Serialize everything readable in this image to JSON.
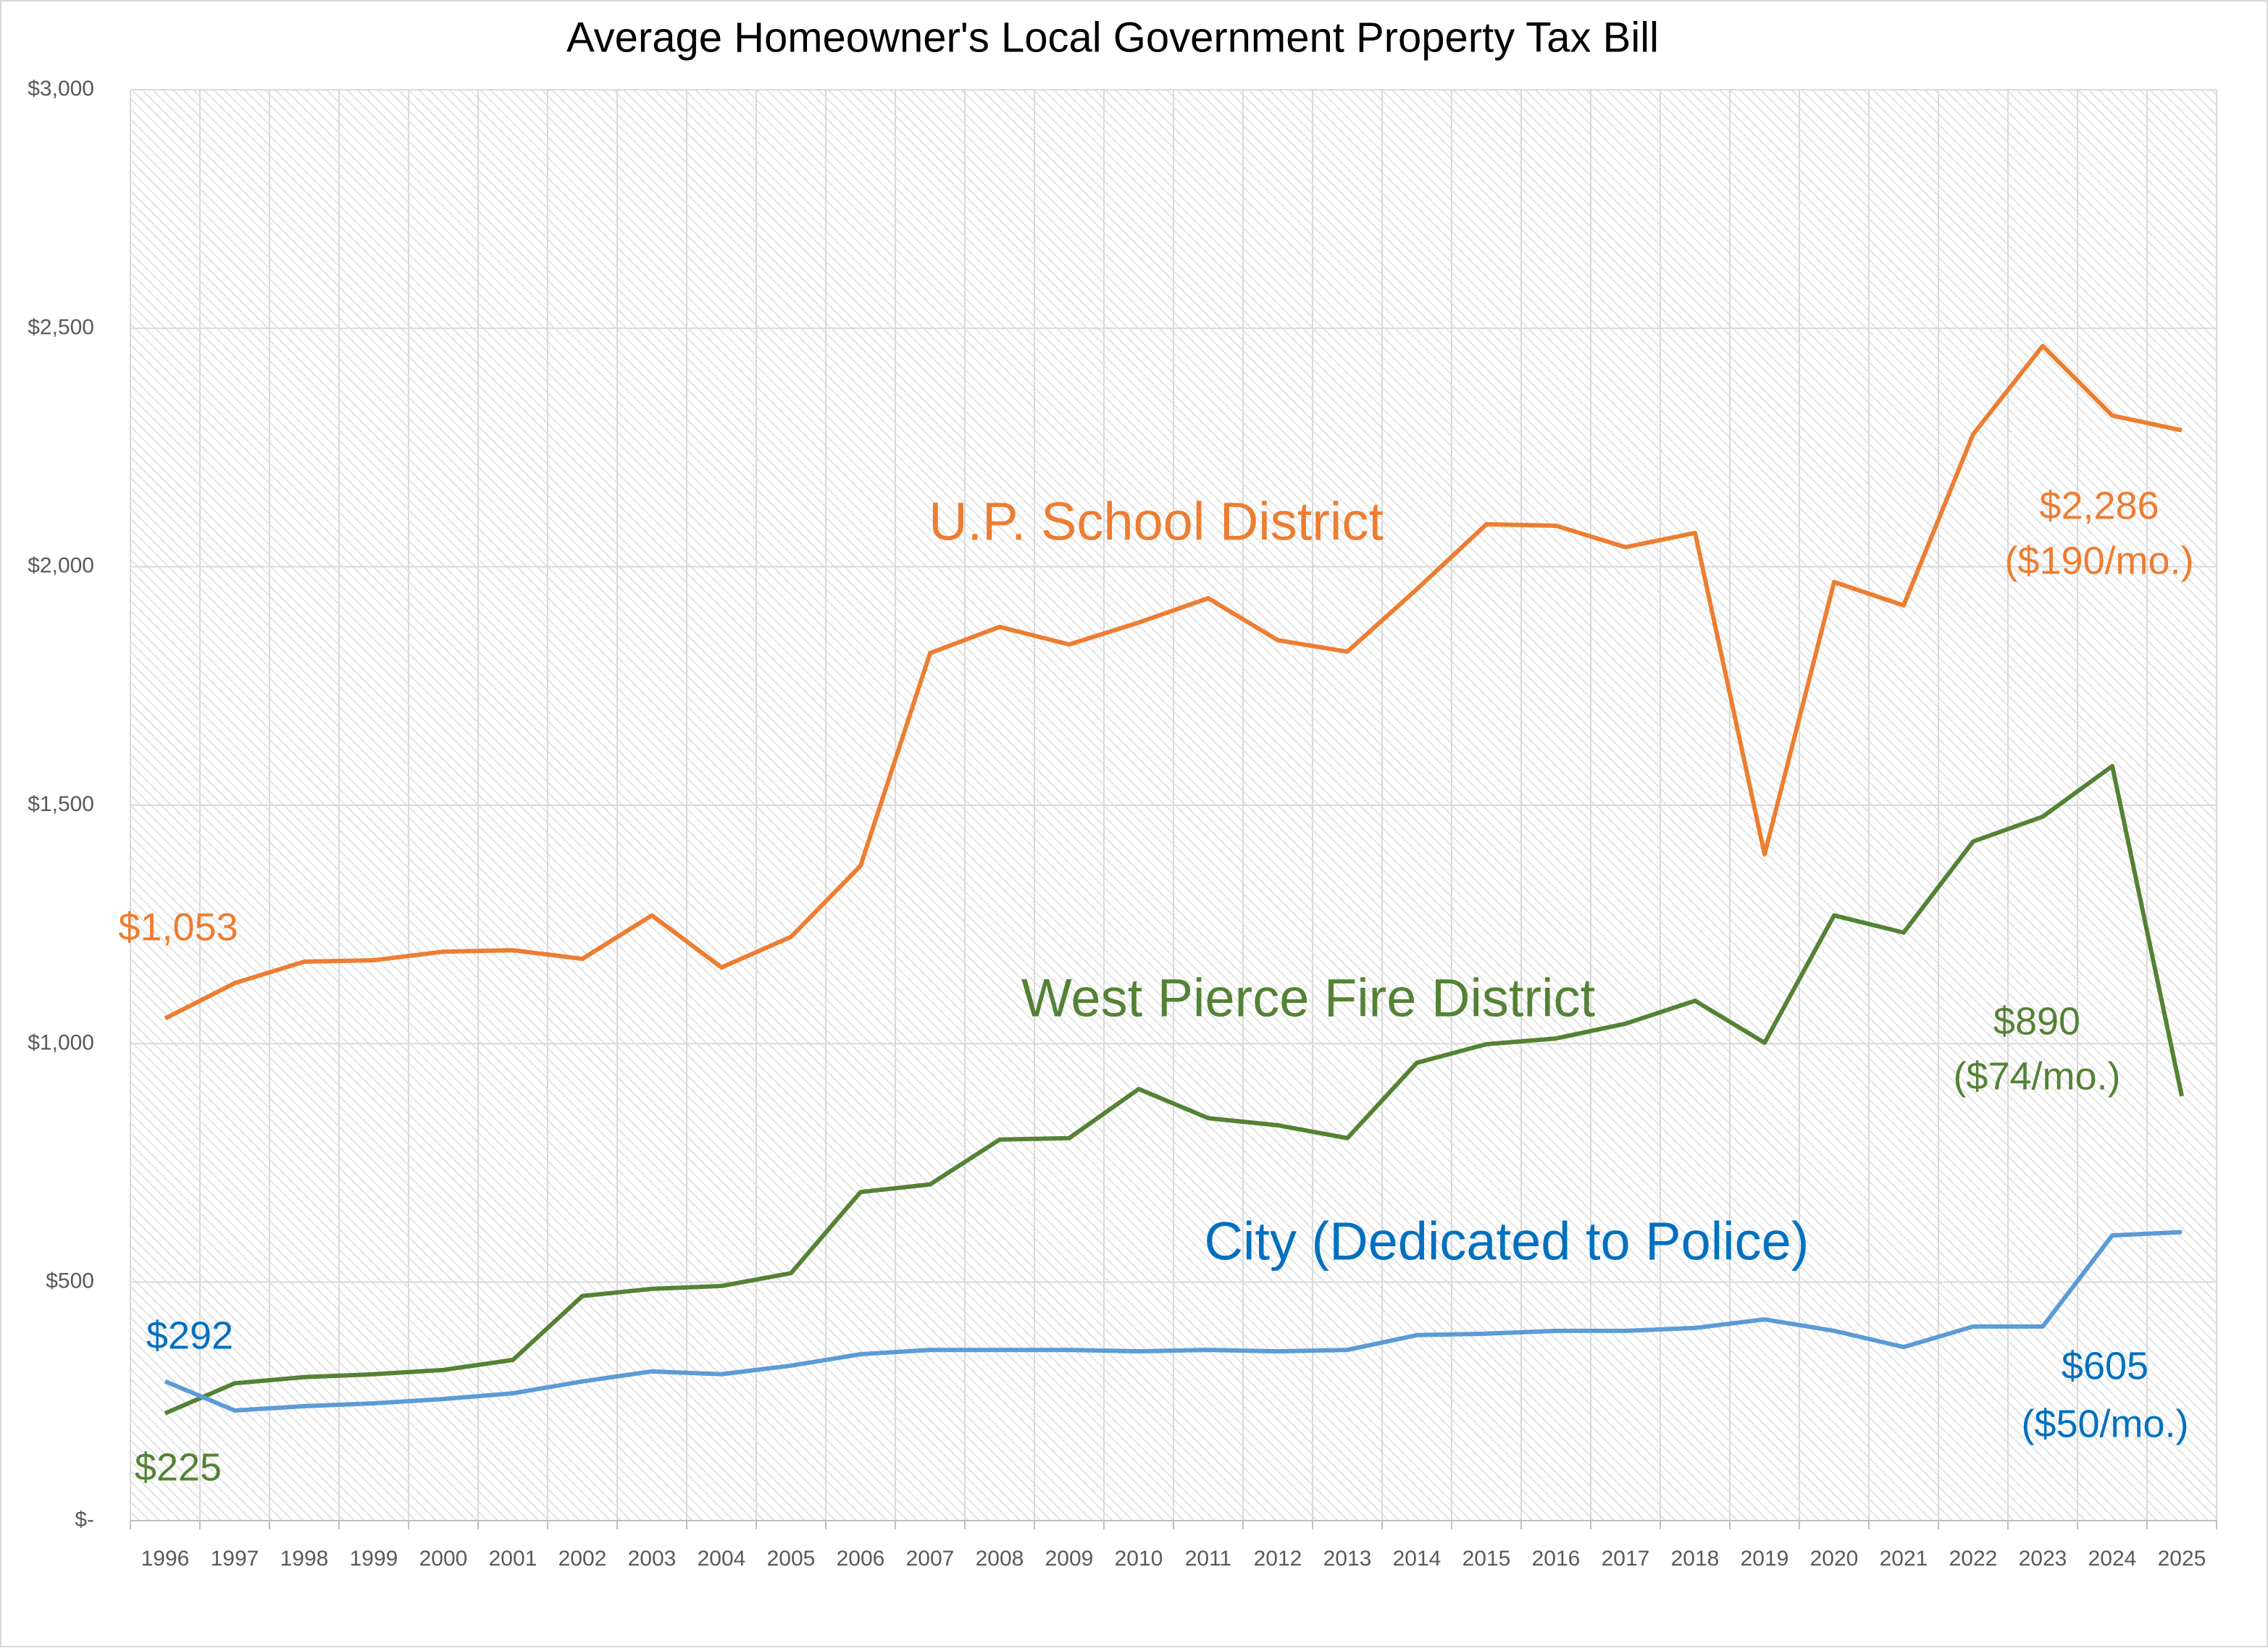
{
  "chart_data": {
    "type": "line",
    "title": "Average Homeowner's Local Government Property Tax Bill",
    "categories": [
      "1996",
      "1997",
      "1998",
      "1999",
      "2000",
      "2001",
      "2002",
      "2003",
      "2004",
      "2005",
      "2006",
      "2007",
      "2008",
      "2009",
      "2010",
      "2011",
      "2012",
      "2013",
      "2014",
      "2015",
      "2016",
      "2017",
      "2018",
      "2019",
      "2020",
      "2021",
      "2022",
      "2023",
      "2024",
      "2025"
    ],
    "ylim": [
      0,
      3000
    ],
    "yticks": [
      {
        "value": 0,
        "label": "$-"
      },
      {
        "value": 500,
        "label": "$500"
      },
      {
        "value": 1000,
        "label": "$1,000"
      },
      {
        "value": 1500,
        "label": "$1,500"
      },
      {
        "value": 2000,
        "label": "$2,000"
      },
      {
        "value": 2500,
        "label": "$2,500"
      },
      {
        "value": 3000,
        "label": "$3,000"
      }
    ],
    "grid": true,
    "series": [
      {
        "name": "U.P. School District",
        "color": "#ed7d31",
        "values": [
          1053,
          1127,
          1172,
          1175,
          1193,
          1196,
          1178,
          1269,
          1160,
          1224,
          1373,
          1819,
          1874,
          1837,
          1883,
          1934,
          1846,
          1822,
          1953,
          2089,
          2086,
          2041,
          2071,
          1397,
          1968,
          1919,
          2278,
          2463,
          2317,
          2286
        ],
        "value_labels": [
          "$1,053",
          null,
          null,
          null,
          null,
          null,
          null,
          null,
          null,
          null,
          null,
          null,
          null,
          null,
          null,
          null,
          null,
          null,
          null,
          null,
          null,
          null,
          null,
          null,
          null,
          null,
          null,
          null,
          null,
          "$2,286"
        ],
        "annotation": "($190/mo.)"
      },
      {
        "name": "West Pierce Fire District",
        "color": "#548235",
        "values": [
          225,
          288,
          301,
          307,
          316,
          337,
          471,
          486,
          492,
          519,
          689,
          705,
          799,
          802,
          905,
          844,
          829,
          802,
          960,
          999,
          1011,
          1042,
          1090,
          1002,
          1269,
          1233,
          1424,
          1476,
          1582,
          890
        ],
        "value_labels": [
          "$225",
          null,
          null,
          null,
          null,
          null,
          null,
          null,
          null,
          null,
          null,
          null,
          null,
          null,
          null,
          null,
          null,
          null,
          null,
          null,
          null,
          null,
          null,
          null,
          null,
          null,
          null,
          null,
          null,
          "$890"
        ],
        "annotation": "($74/mo.)"
      },
      {
        "name": "City (Dedicated to Police)",
        "color": "#5b9bd5",
        "values": [
          292,
          231,
          240,
          246,
          255,
          267,
          292,
          313,
          307,
          325,
          349,
          358,
          358,
          358,
          355,
          358,
          355,
          358,
          389,
          392,
          398,
          398,
          404,
          422,
          398,
          364,
          407,
          407,
          598,
          605
        ],
        "value_labels": [
          "$292",
          null,
          null,
          null,
          null,
          null,
          null,
          null,
          null,
          null,
          null,
          null,
          null,
          null,
          null,
          null,
          null,
          null,
          null,
          null,
          null,
          null,
          null,
          null,
          null,
          null,
          null,
          null,
          null,
          "$605"
        ],
        "annotation": "($50/mo.)"
      }
    ]
  }
}
